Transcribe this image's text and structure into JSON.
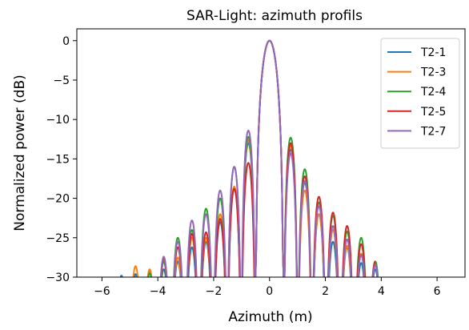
{
  "chart_data": {
    "type": "line",
    "title": "SAR-Light: azimuth profils",
    "xlabel": "Azimuth (m)",
    "ylabel": "Normalized power (dB)",
    "xlim": [
      -6.9,
      7.0
    ],
    "ylim": [
      -30,
      1.5
    ],
    "xticks": [
      -6,
      -4,
      -2,
      0,
      2,
      4,
      6
    ],
    "xtick_labels": [
      "−6",
      "−4",
      "−2",
      "0",
      "2",
      "4",
      "6"
    ],
    "yticks": [
      0,
      -5,
      -10,
      -15,
      -20,
      -25,
      -30
    ],
    "ytick_labels": [
      "0",
      "−5",
      "−10",
      "−15",
      "−20",
      "−25",
      "−30"
    ],
    "grid": false,
    "legend_position": "top-right",
    "series": [
      {
        "name": "T2-1",
        "color": "#1f77b4",
        "null_spacing": 0.505,
        "xmin": -5.35,
        "xmax": 4.25,
        "peaks_left": [
          -13.0,
          -18.8,
          -23.0,
          -25.5,
          -26.2,
          -28.0,
          -29.0,
          -29.3,
          -29.6,
          -29.8
        ],
        "peaks_right": [
          -13.8,
          -18.0,
          -22.0,
          -25.5,
          -26.2,
          -28.2,
          -29.0,
          -29.8
        ]
      },
      {
        "name": "T2-3",
        "color": "#ff7f0e",
        "null_spacing": 0.505,
        "xmin": -4.95,
        "xmax": 4.0,
        "peaks_left": [
          -12.6,
          -18.5,
          -22.0,
          -25.0,
          -25.0,
          -27.5,
          -28.0,
          -29.0,
          -28.6
        ],
        "peaks_right": [
          -13.3,
          -19.0,
          -22.0,
          -24.0,
          -26.0,
          -27.0,
          -28.3,
          -29.0
        ]
      },
      {
        "name": "T2-4",
        "color": "#2ca02c",
        "null_spacing": 0.505,
        "xmin": -4.5,
        "xmax": 3.9,
        "peaks_left": [
          -12.2,
          -16.0,
          -20.0,
          -21.3,
          -24.0,
          -25.0,
          -28.0,
          -29.5
        ],
        "peaks_right": [
          -12.3,
          -16.3,
          -20.5,
          -22.2,
          -24.2,
          -25.0,
          -28.0,
          -29.5
        ]
      },
      {
        "name": "T2-5",
        "color": "#d62728",
        "null_spacing": 0.505,
        "xmin": -4.1,
        "xmax": 3.8,
        "peaks_left": [
          -15.5,
          -18.8,
          -22.6,
          -24.3,
          -24.5,
          -26.2,
          -27.6,
          -29.5
        ],
        "peaks_right": [
          -13.0,
          -17.2,
          -19.8,
          -21.8,
          -23.5,
          -25.8,
          -28.0,
          -29.5
        ]
      },
      {
        "name": "T2-7",
        "color": "#9467bd",
        "null_spacing": 0.505,
        "xmin": -4.1,
        "xmax": 4.2,
        "peaks_left": [
          -11.4,
          -16.0,
          -19.0,
          -22.0,
          -22.8,
          -25.5,
          -27.4,
          -29.2
        ],
        "peaks_right": [
          -14.3,
          -17.8,
          -21.0,
          -23.5,
          -25.2,
          -27.2,
          -28.5,
          -29.6
        ]
      }
    ]
  }
}
